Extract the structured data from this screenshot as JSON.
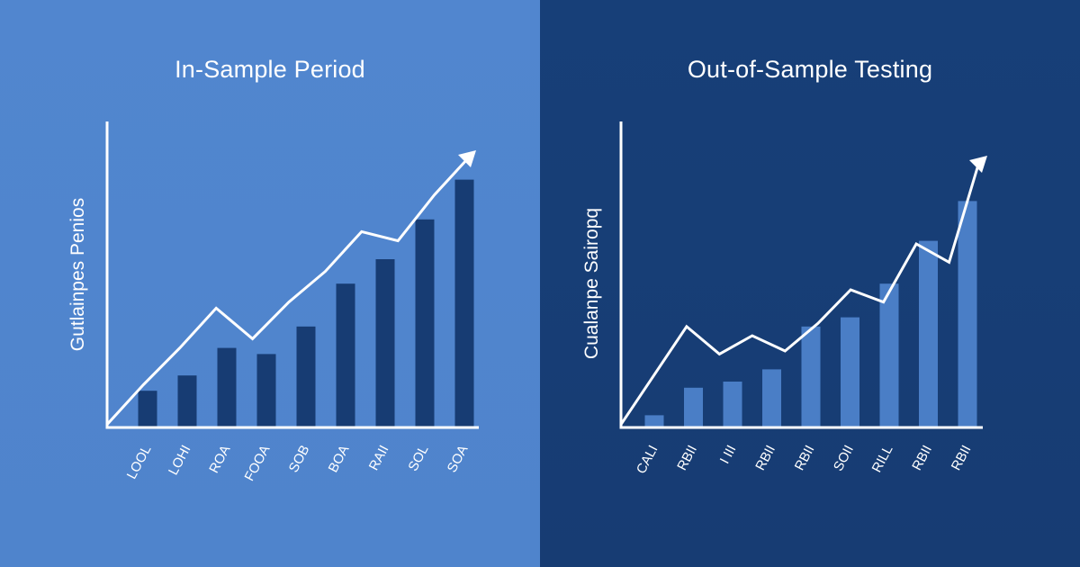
{
  "chart_data": [
    {
      "type": "bar",
      "title": "In-Sample Period",
      "ylabel": "Gutlainpes Penios",
      "categories": [
        "LOOL",
        "LOHI",
        "ROA",
        "FOOA",
        "SOB",
        "BOA",
        "RAII",
        "SOL",
        "SOA"
      ],
      "values": [
        0.12,
        0.17,
        0.26,
        0.24,
        0.33,
        0.47,
        0.55,
        0.68,
        0.81
      ],
      "trend": [
        0.01,
        0.14,
        0.26,
        0.39,
        0.29,
        0.41,
        0.51,
        0.64,
        0.61,
        0.76,
        0.92
      ],
      "ylim": [
        0,
        1
      ],
      "colors": {
        "background": "#5186cf",
        "bar": "#173c73",
        "line": "#ffffff"
      }
    },
    {
      "type": "bar",
      "title": "Out-of-Sample Testing",
      "ylabel": "Cualanpe Sairopq",
      "categories": [
        "CALI",
        "RBII",
        "I III",
        "RBII",
        "RBII",
        "SOII",
        "RILL",
        "RBII",
        "RBII"
      ],
      "values": [
        0.04,
        0.13,
        0.15,
        0.19,
        0.33,
        0.36,
        0.47,
        0.61,
        0.74
      ],
      "trend": [
        0.01,
        0.17,
        0.33,
        0.24,
        0.3,
        0.25,
        0.34,
        0.45,
        0.41,
        0.6,
        0.54,
        0.88
      ],
      "ylim": [
        0,
        1
      ],
      "colors": {
        "background": "#173f78",
        "bar": "#4a7ec6",
        "line": "#ffffff"
      }
    }
  ]
}
